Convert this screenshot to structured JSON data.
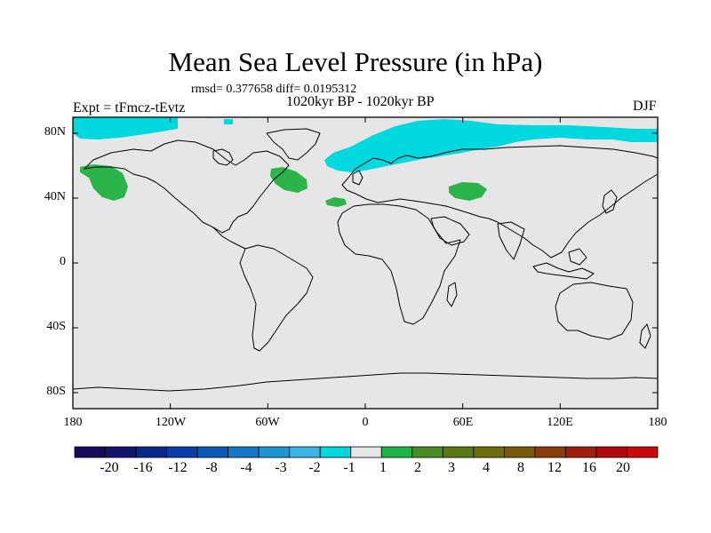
{
  "title": "Mean Sea Level Pressure (in hPa)",
  "stats": "rmsd= 0.377658 diff= 0.0195312",
  "subtitle": "1020kyr BP - 1020kyr BP",
  "left_label": "Expt = tFmcz-tEvtz",
  "right_label": "DJF",
  "lat_labels": [
    "80N",
    "40N",
    "0",
    "40S",
    "80S"
  ],
  "lon_labels": [
    "180",
    "120W",
    "60W",
    "0",
    "60E",
    "120E",
    "180"
  ],
  "colorbar": {
    "colors": [
      "#1a0a5e",
      "#14146e",
      "#0a2a8a",
      "#0a3ea8",
      "#0a5ab8",
      "#1478c8",
      "#1e96d2",
      "#3cb4e4",
      "#00d8e0",
      "#e6e6e6",
      "#1eb446",
      "#4a8c28",
      "#5a7814",
      "#6e6e0a",
      "#7a5a0a",
      "#8c3c0a",
      "#a01e0a",
      "#b00a0a",
      "#c80a0a"
    ],
    "labels": [
      "-20",
      "-16",
      "-12",
      "-8",
      "-4",
      "-3",
      "-2",
      "-1",
      "1",
      "2",
      "3",
      "4",
      "8",
      "12",
      "16",
      "20"
    ]
  },
  "fills": {
    "background": "#e6e6e6",
    "negative": "#00d8e0",
    "positive": "#2ab44a"
  }
}
